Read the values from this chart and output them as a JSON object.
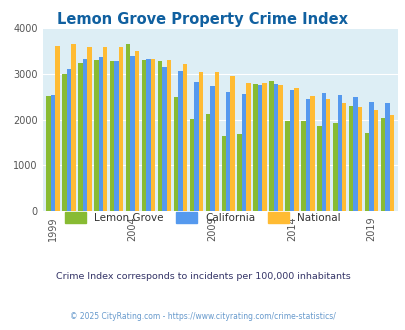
{
  "title": "Lemon Grove Property Crime Index",
  "title_color": "#1060a0",
  "subtitle": "Crime Index corresponds to incidents per 100,000 inhabitants",
  "subtitle_color": "#333366",
  "footer": "© 2025 CityRating.com - https://www.cityrating.com/crime-statistics/",
  "footer_color": "#6699cc",
  "years": [
    1999,
    2000,
    2001,
    2002,
    2003,
    2004,
    2005,
    2006,
    2007,
    2008,
    2009,
    2010,
    2011,
    2012,
    2013,
    2014,
    2015,
    2016,
    2017,
    2018,
    2019,
    2020
  ],
  "lemon_grove": [
    2520,
    3000,
    3230,
    3310,
    3290,
    3650,
    3310,
    3290,
    2490,
    2010,
    2130,
    1640,
    1680,
    2770,
    2840,
    1980,
    1970,
    1870,
    1920,
    2290,
    1710,
    2040
  ],
  "california": [
    2540,
    3110,
    3330,
    3360,
    3290,
    3390,
    3320,
    3160,
    3060,
    2820,
    2730,
    2600,
    2560,
    2750,
    2780,
    2650,
    2450,
    2580,
    2540,
    2490,
    2380,
    2360
  ],
  "national": [
    3610,
    3660,
    3590,
    3590,
    3580,
    3490,
    3320,
    3300,
    3220,
    3040,
    3030,
    2950,
    2810,
    2790,
    2750,
    2680,
    2510,
    2460,
    2370,
    2280,
    2200,
    2100
  ],
  "lemon_grove_color": "#88bb33",
  "california_color": "#5599ee",
  "national_color": "#ffbb33",
  "bg_color": "#ddeef5",
  "ylim": [
    0,
    4000
  ],
  "yticks": [
    0,
    1000,
    2000,
    3000,
    4000
  ],
  "xtick_years": [
    1999,
    2004,
    2009,
    2014,
    2019
  ],
  "bar_width": 0.28,
  "legend_labels": [
    "Lemon Grove",
    "California",
    "National"
  ]
}
